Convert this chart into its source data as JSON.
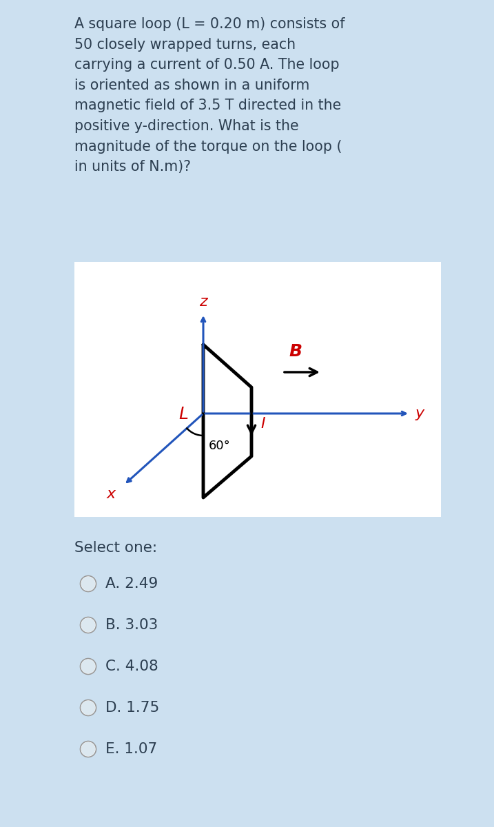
{
  "bg_color": "#cce0f0",
  "diagram_bg": "#ffffff",
  "question_text": "A square loop (L = 0.20 m) consists of\n50 closely wrapped turns, each\ncarrying a current of 0.50 A. The loop\nis oriented as shown in a uniform\nmagnetic field of 3.5 T directed in the\npositive y-direction. What is the\nmagnitude of the torque on the loop (\nin units of N.m)?",
  "select_text": "Select one:",
  "options": [
    "A. 2.49",
    "B. 3.03",
    "C. 4.08",
    "D. 1.75",
    "E. 1.07"
  ],
  "text_color": "#2c3e50",
  "red_color": "#cc0000",
  "blue_color": "#2255bb",
  "black_color": "#000000",
  "question_fontsize": 14.8,
  "options_fontsize": 15.5,
  "select_fontsize": 15.5
}
